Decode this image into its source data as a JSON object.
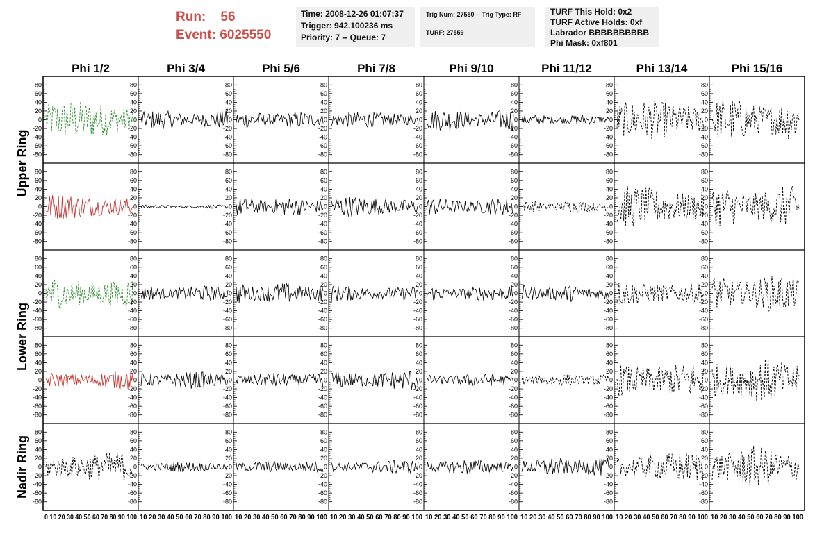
{
  "header": {
    "run_label": "Run:    56",
    "event_label": "Event: 6025550"
  },
  "info_time": {
    "time": "Time: 2008-12-26 01:07:37",
    "trigger": "Trigger: 942.100236 ms",
    "priority": "Priority: 7 -- Queue: 7"
  },
  "info_trig": {
    "trig": "Trig Num: 27550 -- Trig Type: RF",
    "turf": "TURF: 27559"
  },
  "info_turf": {
    "hold": "TURF This Hold: 0x2",
    "active": "TURF Active Holds: 0xf",
    "labrador": "Labrador BBBBBBBBBB",
    "mask": "Phi Mask: 0xf801"
  },
  "chart_data": {
    "type": "line",
    "columns": [
      "Phi 1/2",
      "Phi 3/4",
      "Phi 5/6",
      "Phi 7/8",
      "Phi 9/10",
      "Phi 11/12",
      "Phi 13/14",
      "Phi 15/16"
    ],
    "ring_labels": [
      "Upper Ring",
      "Lower Ring",
      "Nadir Ring"
    ],
    "ylim": [
      -90,
      90
    ],
    "xlim": [
      0,
      100
    ],
    "y_ticks": [
      "80",
      "60",
      "40",
      "20",
      "0",
      "-20",
      "-40",
      "-60",
      "-80"
    ],
    "x_tick_text": [
      "0 10 20 30 40 50 60 70 80 90 100",
      "10 20 30 40 50 60 70 80 90 100",
      "10 20 30 40 50 60 70 80 90 100",
      "10 20 30 40 50 60 70 80 90 100",
      "10 20 30 40 50 60 70 80 90 100",
      "10 20 30 40 50 60 70 80 90 100",
      "10 20 30 40 50 60 70 80 90 100",
      "10 20 30 40 50 60 70 80 90 100"
    ],
    "colors": {
      "green": "#2e8b2e",
      "red": "#c0302c",
      "black": "#000000"
    },
    "rows": [
      {
        "ring": "Upper Ring",
        "panels": [
          {
            "color": "green",
            "dash": true,
            "amp": 45
          },
          {
            "color": "black",
            "dash": false,
            "amp": 22
          },
          {
            "color": "black",
            "dash": false,
            "amp": 20
          },
          {
            "color": "black",
            "dash": false,
            "amp": 18
          },
          {
            "color": "black",
            "dash": false,
            "amp": 25
          },
          {
            "color": "black",
            "dash": false,
            "amp": 12
          },
          {
            "color": "black",
            "dash": true,
            "amp": 45
          },
          {
            "color": "black",
            "dash": true,
            "amp": 50
          }
        ]
      },
      {
        "ring": "Upper Ring",
        "panels": [
          {
            "color": "red",
            "dash": false,
            "amp": 30
          },
          {
            "color": "black",
            "dash": false,
            "amp": 4
          },
          {
            "color": "black",
            "dash": false,
            "amp": 22
          },
          {
            "color": "black",
            "dash": false,
            "amp": 25
          },
          {
            "color": "black",
            "dash": false,
            "amp": 20
          },
          {
            "color": "black",
            "dash": true,
            "amp": 14
          },
          {
            "color": "black",
            "dash": true,
            "amp": 48
          },
          {
            "color": "black",
            "dash": true,
            "amp": 48
          }
        ]
      },
      {
        "ring": "Lower Ring",
        "panels": [
          {
            "color": "green",
            "dash": true,
            "amp": 40
          },
          {
            "color": "black",
            "dash": false,
            "amp": 18
          },
          {
            "color": "black",
            "dash": false,
            "amp": 25
          },
          {
            "color": "black",
            "dash": false,
            "amp": 20
          },
          {
            "color": "black",
            "dash": false,
            "amp": 18
          },
          {
            "color": "black",
            "dash": false,
            "amp": 20
          },
          {
            "color": "black",
            "dash": true,
            "amp": 30
          },
          {
            "color": "black",
            "dash": true,
            "amp": 42
          }
        ]
      },
      {
        "ring": "Lower Ring",
        "panels": [
          {
            "color": "red",
            "dash": false,
            "amp": 22
          },
          {
            "color": "black",
            "dash": false,
            "amp": 20
          },
          {
            "color": "black",
            "dash": false,
            "amp": 18
          },
          {
            "color": "black",
            "dash": false,
            "amp": 25
          },
          {
            "color": "black",
            "dash": false,
            "amp": 15
          },
          {
            "color": "black",
            "dash": true,
            "amp": 15
          },
          {
            "color": "black",
            "dash": true,
            "amp": 45
          },
          {
            "color": "black",
            "dash": true,
            "amp": 50
          }
        ]
      },
      {
        "ring": "Nadir Ring",
        "panels": [
          {
            "color": "black",
            "dash": true,
            "amp": 35
          },
          {
            "color": "black",
            "dash": false,
            "amp": 12
          },
          {
            "color": "black",
            "dash": false,
            "amp": 14
          },
          {
            "color": "black",
            "dash": false,
            "amp": 16
          },
          {
            "color": "black",
            "dash": false,
            "amp": 18
          },
          {
            "color": "black",
            "dash": false,
            "amp": 22
          },
          {
            "color": "black",
            "dash": true,
            "amp": 35
          },
          {
            "color": "black",
            "dash": true,
            "amp": 48
          }
        ]
      }
    ]
  }
}
